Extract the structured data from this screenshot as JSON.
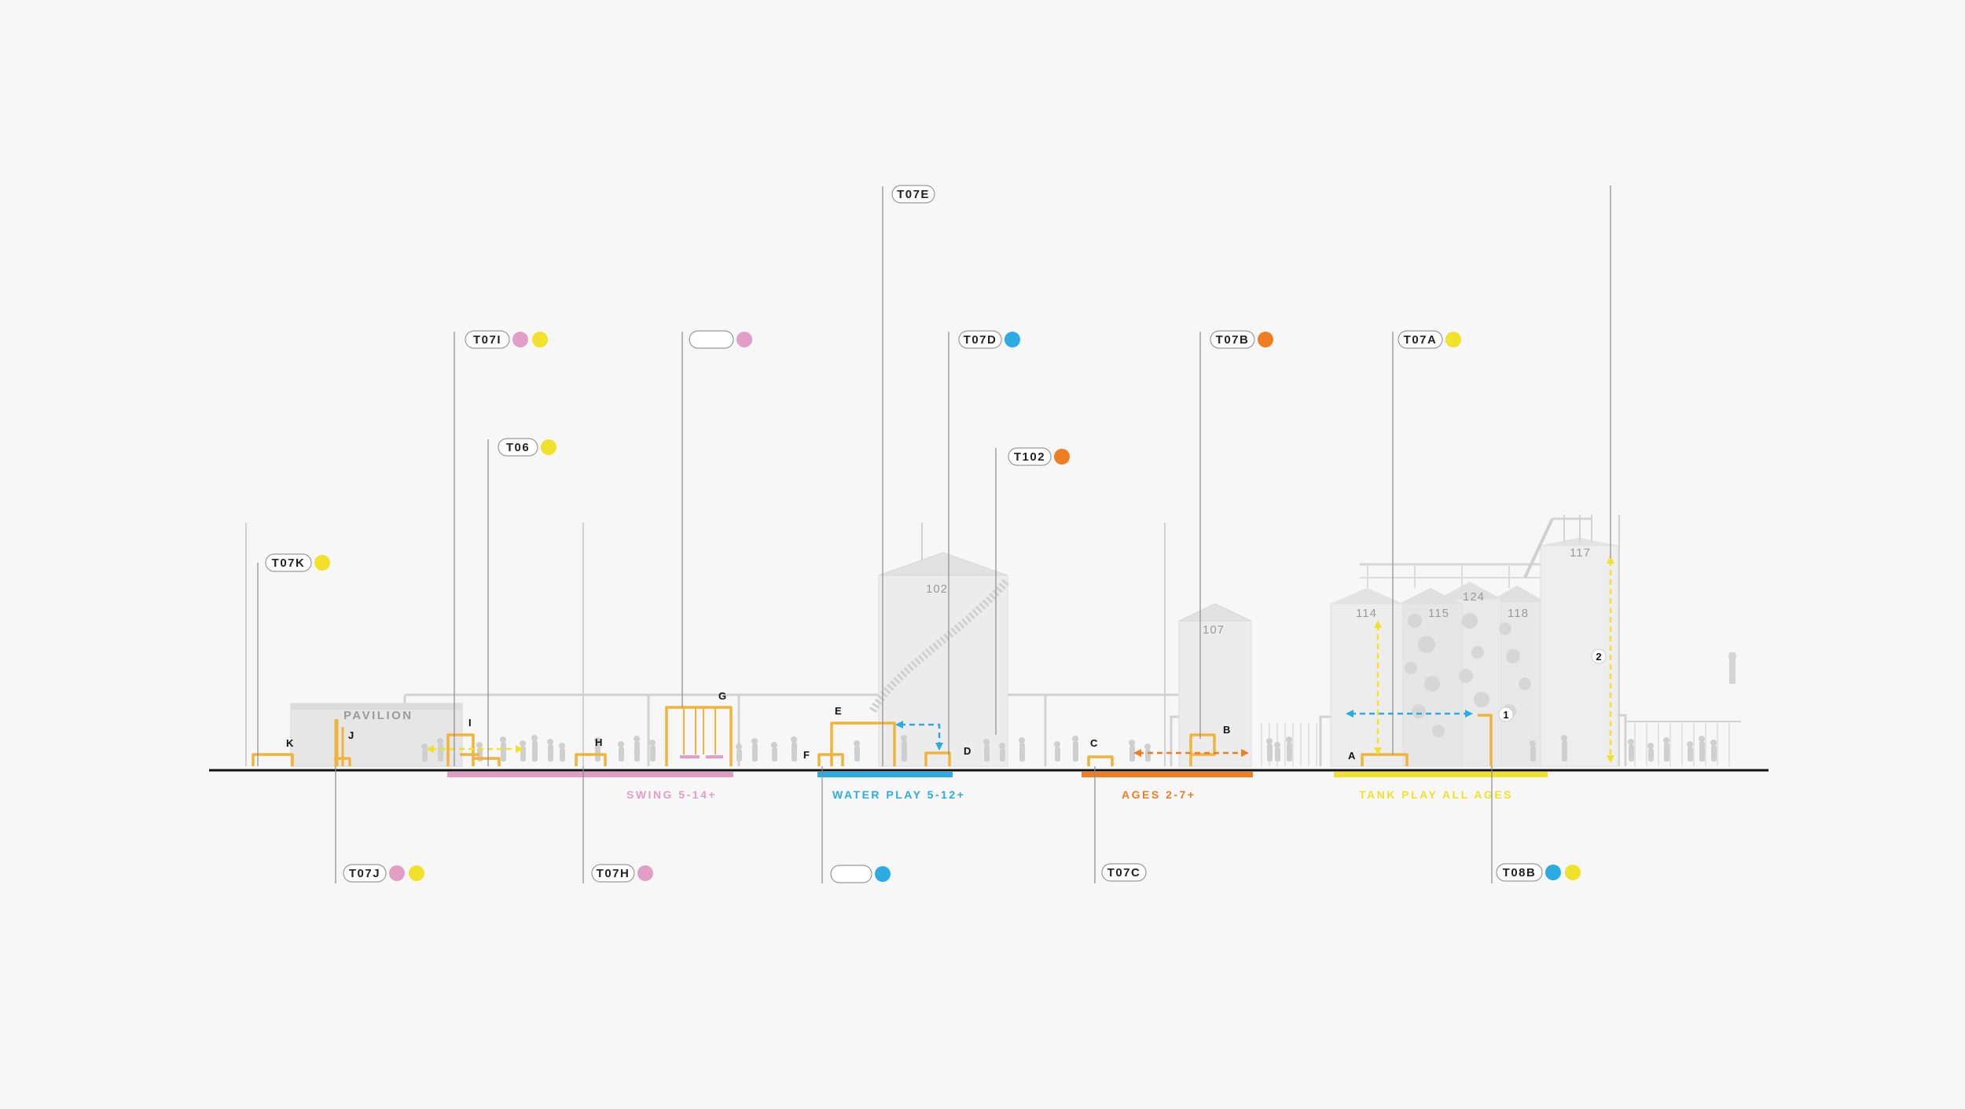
{
  "colors": {
    "pink": "#e19fc8",
    "yellow": "#f2e12a",
    "blue": "#2aace2",
    "orange": "#ef7d22",
    "equipment": "#f0b43c",
    "tank": "#ececec",
    "leader": "#8c8c8c",
    "ground": "#111111"
  },
  "tags": {
    "t07k": {
      "label": "T07K",
      "dots": [
        "yellow"
      ]
    },
    "t07i": {
      "label": "T07I",
      "dots": [
        "pink",
        "yellow"
      ]
    },
    "t06": {
      "label": "T06",
      "dots": [
        "yellow"
      ]
    },
    "blank_top": {
      "label": "",
      "dots": [
        "pink"
      ]
    },
    "t07e": {
      "label": "T07E",
      "dots": []
    },
    "t07d": {
      "label": "T07D",
      "dots": [
        "blue"
      ]
    },
    "t102": {
      "label": "T102",
      "dots": [
        "orange"
      ]
    },
    "t07b": {
      "label": "T07B",
      "dots": [
        "orange"
      ]
    },
    "t07a": {
      "label": "T07A",
      "dots": [
        "yellow"
      ]
    },
    "t07j": {
      "label": "T07J",
      "dots": [
        "pink",
        "yellow"
      ]
    },
    "t07h": {
      "label": "T07H",
      "dots": [
        "pink"
      ]
    },
    "blank_bottom": {
      "label": "",
      "dots": [
        "blue"
      ]
    },
    "t07c": {
      "label": "T07C",
      "dots": []
    },
    "t08b": {
      "label": "T08B",
      "dots": [
        "blue",
        "yellow"
      ]
    }
  },
  "zones": {
    "swing": {
      "label": "SWING 5-14+",
      "color": "pink"
    },
    "water": {
      "label": "WATER PLAY 5-12+",
      "color": "blue"
    },
    "ages": {
      "label": "AGES 2-7+",
      "color": "orange"
    },
    "tank": {
      "label": "TANK PLAY ALL AGES",
      "color": "yellow"
    }
  },
  "letters": {
    "a": "A",
    "b": "B",
    "c": "C",
    "d": "D",
    "e": "E",
    "f": "F",
    "g": "G",
    "h": "H",
    "i": "I",
    "j": "J",
    "k": "K"
  },
  "markers": {
    "one": "1",
    "two": "2"
  },
  "tanks": {
    "t102": "102",
    "t107": "107",
    "t114": "114",
    "t115": "115",
    "t124": "124",
    "t118": "118",
    "t117": "117"
  },
  "pavilion": "PAVILION"
}
